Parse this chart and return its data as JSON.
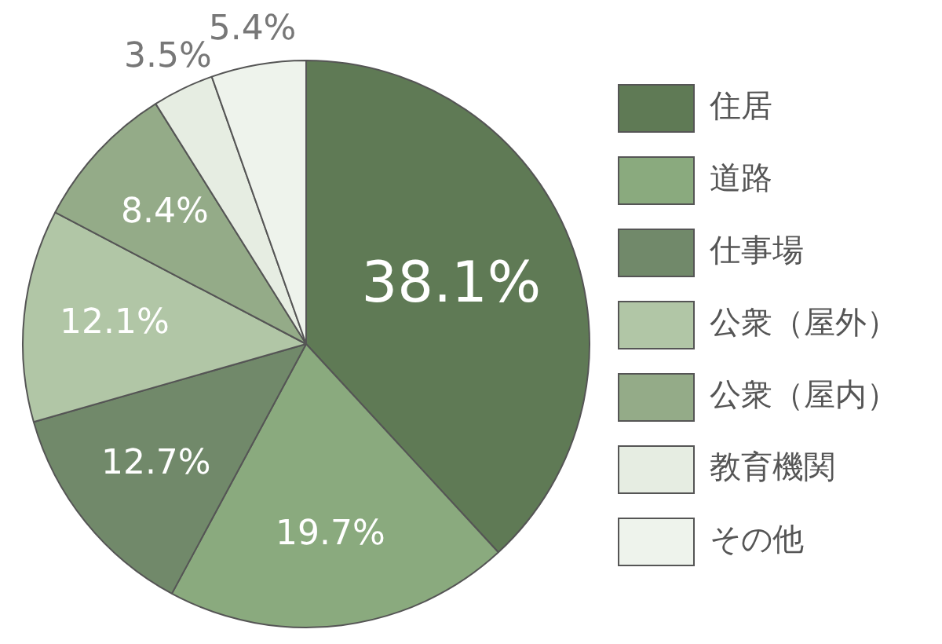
{
  "chart_data": {
    "type": "pie",
    "categories": [
      "住居",
      "道路",
      "仕事場",
      "公衆（屋外）",
      "公衆（屋内）",
      "教育機関",
      "その他"
    ],
    "values": [
      38.1,
      19.7,
      12.7,
      12.1,
      8.4,
      3.5,
      5.4
    ],
    "colors": [
      "#5f7a55",
      "#8aaa7e",
      "#71896a",
      "#b1c6a6",
      "#94ab88",
      "#e6ede2",
      "#eef3ec"
    ],
    "value_labels": [
      "38.1%",
      "19.7%",
      "12.7%",
      "12.1%",
      "8.4%",
      "3.5%",
      "5.4%"
    ],
    "legend": "right"
  }
}
